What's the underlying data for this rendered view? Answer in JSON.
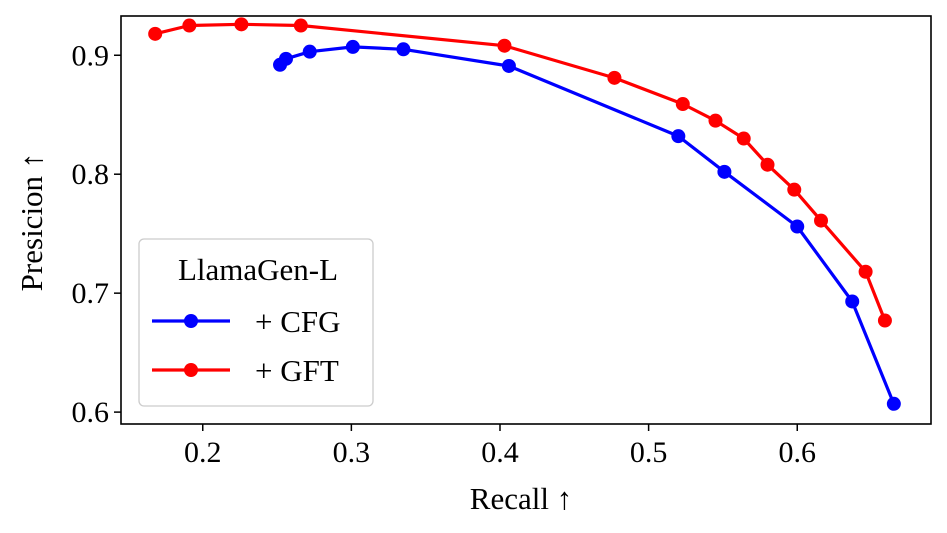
{
  "chart_data": {
    "type": "line",
    "xlabel": "Recall ↑",
    "ylabel": "Presicion ↑",
    "xlim": [
      0.145,
      0.69
    ],
    "ylim": [
      0.59,
      0.933
    ],
    "xticks": [
      0.2,
      0.3,
      0.4,
      0.5,
      0.6
    ],
    "yticks": [
      0.6,
      0.7,
      0.8,
      0.9
    ],
    "xtick_labels": [
      "0.2",
      "0.3",
      "0.4",
      "0.5",
      "0.6"
    ],
    "ytick_labels": [
      "0.6",
      "0.7",
      "0.8",
      "0.9"
    ],
    "legend": {
      "title": "LlamaGen-L",
      "placement": "lower-left"
    },
    "series": [
      {
        "name": "+ CFG",
        "color": "#0000ff",
        "marker": "circle",
        "x": [
          0.252,
          0.256,
          0.272,
          0.301,
          0.335,
          0.406,
          0.52,
          0.551,
          0.6,
          0.637,
          0.665
        ],
        "y": [
          0.892,
          0.897,
          0.903,
          0.907,
          0.905,
          0.891,
          0.832,
          0.802,
          0.756,
          0.693,
          0.607
        ]
      },
      {
        "name": "+ GFT",
        "color": "#ff0000",
        "marker": "circle",
        "x": [
          0.168,
          0.191,
          0.226,
          0.266,
          0.403,
          0.477,
          0.523,
          0.545,
          0.564,
          0.58,
          0.598,
          0.616,
          0.646,
          0.659
        ],
        "y": [
          0.918,
          0.925,
          0.926,
          0.925,
          0.908,
          0.881,
          0.859,
          0.845,
          0.83,
          0.808,
          0.787,
          0.761,
          0.718,
          0.677
        ]
      }
    ]
  }
}
